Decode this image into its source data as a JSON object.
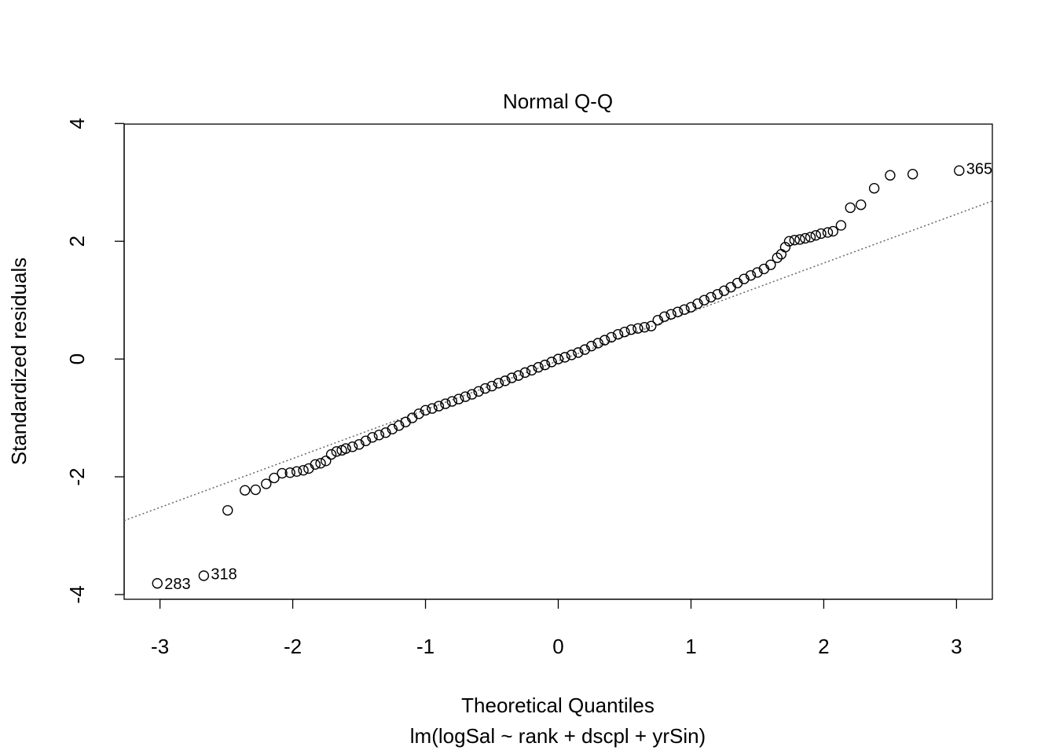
{
  "chart_data": {
    "type": "scatter",
    "title": "Normal Q-Q",
    "xlabel": "Theoretical Quantiles",
    "subtitle": "lm(logSal ~ rank + dscpl + yrSin)",
    "ylabel": "Standardized residuals",
    "xlim": [
      -3.27,
      3.27
    ],
    "ylim": [
      -4.08,
      3.99
    ],
    "xticks": [
      -3,
      -2,
      -1,
      0,
      1,
      2,
      3
    ],
    "yticks": [
      -4,
      -2,
      0,
      2,
      4
    ],
    "reference_line": {
      "intercept": -0.03,
      "slope": 0.83,
      "color": "#666666"
    },
    "color": "#000000",
    "x": [
      -3.02,
      -2.67,
      -2.49,
      -2.36,
      -2.28,
      -2.2,
      -2.14,
      -2.08,
      -2.02,
      -1.97,
      -1.92,
      -1.88,
      -1.83,
      -1.79,
      -1.75,
      -1.71,
      -1.67,
      -1.63,
      -1.6,
      -1.55,
      -1.5,
      -1.45,
      -1.4,
      -1.35,
      -1.3,
      -1.25,
      -1.2,
      -1.15,
      -1.1,
      -1.05,
      -1.0,
      -0.95,
      -0.9,
      -0.85,
      -0.8,
      -0.75,
      -0.7,
      -0.65,
      -0.6,
      -0.55,
      -0.5,
      -0.45,
      -0.4,
      -0.35,
      -0.3,
      -0.25,
      -0.2,
      -0.15,
      -0.1,
      -0.05,
      0,
      0.05,
      0.1,
      0.15,
      0.2,
      0.25,
      0.3,
      0.35,
      0.4,
      0.45,
      0.5,
      0.55,
      0.6,
      0.65,
      0.7,
      0.75,
      0.8,
      0.85,
      0.9,
      0.95,
      1.0,
      1.05,
      1.1,
      1.15,
      1.2,
      1.25,
      1.3,
      1.35,
      1.4,
      1.45,
      1.5,
      1.55,
      1.6,
      1.65,
      1.68,
      1.71,
      1.74,
      1.78,
      1.82,
      1.86,
      1.9,
      1.94,
      1.98,
      2.03,
      2.07,
      2.13,
      2.2,
      2.28,
      2.38,
      2.5,
      2.67,
      3.02
    ],
    "values": [
      -3.81,
      -3.68,
      -2.57,
      -2.23,
      -2.22,
      -2.12,
      -2.02,
      -1.94,
      -1.93,
      -1.91,
      -1.89,
      -1.86,
      -1.79,
      -1.77,
      -1.73,
      -1.62,
      -1.57,
      -1.55,
      -1.52,
      -1.49,
      -1.45,
      -1.39,
      -1.33,
      -1.29,
      -1.25,
      -1.19,
      -1.13,
      -1.07,
      -1.0,
      -0.93,
      -0.87,
      -0.84,
      -0.8,
      -0.76,
      -0.72,
      -0.68,
      -0.64,
      -0.6,
      -0.55,
      -0.5,
      -0.46,
      -0.41,
      -0.37,
      -0.32,
      -0.28,
      -0.23,
      -0.19,
      -0.14,
      -0.1,
      -0.05,
      0,
      0.03,
      0.07,
      0.11,
      0.16,
      0.22,
      0.27,
      0.32,
      0.37,
      0.42,
      0.46,
      0.5,
      0.52,
      0.54,
      0.56,
      0.66,
      0.72,
      0.76,
      0.8,
      0.84,
      0.88,
      0.94,
      1.0,
      1.05,
      1.1,
      1.16,
      1.22,
      1.29,
      1.36,
      1.42,
      1.47,
      1.53,
      1.6,
      1.72,
      1.78,
      1.9,
      2.0,
      2.02,
      2.03,
      2.05,
      2.07,
      2.1,
      2.13,
      2.15,
      2.17,
      2.27,
      2.57,
      2.62,
      2.9,
      3.12,
      3.14,
      3.2
    ],
    "point_labels": [
      "283",
      "318",
      null,
      null,
      null,
      null,
      null,
      null,
      null,
      null,
      null,
      null,
      null,
      null,
      null,
      null,
      null,
      null,
      null,
      null,
      null,
      null,
      null,
      null,
      null,
      null,
      null,
      null,
      null,
      null,
      null,
      null,
      null,
      null,
      null,
      null,
      null,
      null,
      null,
      null,
      null,
      null,
      null,
      null,
      null,
      null,
      null,
      null,
      null,
      null,
      null,
      null,
      null,
      null,
      null,
      null,
      null,
      null,
      null,
      null,
      null,
      null,
      null,
      null,
      null,
      null,
      null,
      null,
      null,
      null,
      null,
      null,
      null,
      null,
      null,
      null,
      null,
      null,
      null,
      null,
      null,
      null,
      null,
      null,
      null,
      null,
      null,
      null,
      null,
      null,
      null,
      null,
      null,
      null,
      null,
      null,
      null,
      null,
      null,
      null,
      null,
      "365"
    ]
  }
}
